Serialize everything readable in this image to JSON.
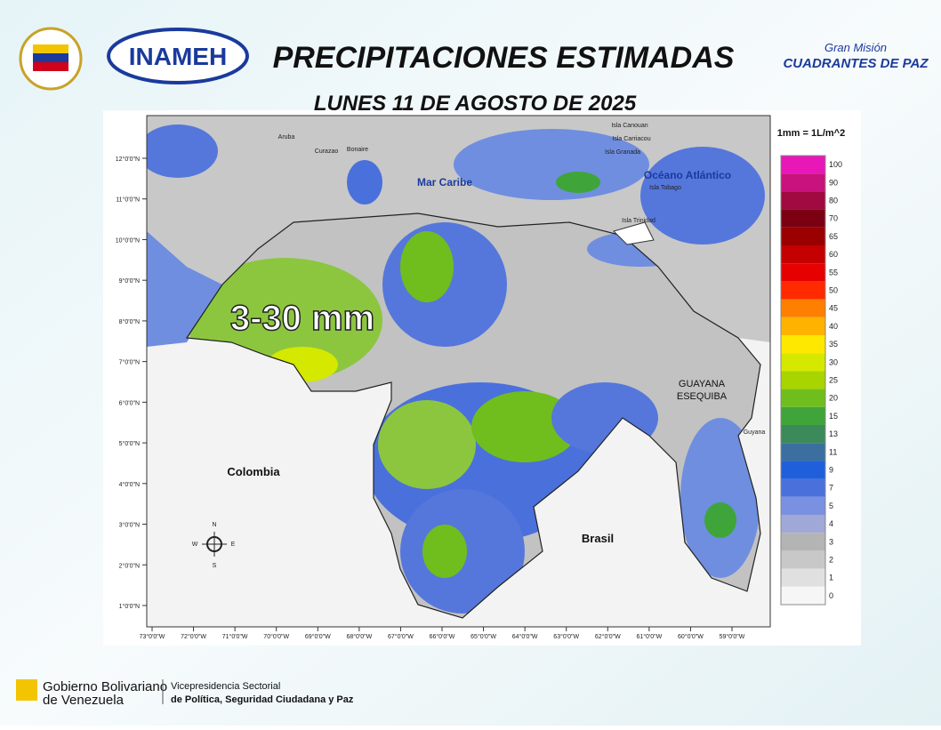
{
  "header": {
    "title": "PRECIPITACIONES ESTIMADAS",
    "subtitle": "LUNES 11 DE AGOSTO DE 2025",
    "logo_text": "INAMEH",
    "mision": "Gran Misión",
    "mision_name": "CUADRANTES DE PAZ"
  },
  "map": {
    "annotation": "3-30 mm",
    "labels": [
      "Mar Caribe",
      "Océano Atlántico",
      "Colombia",
      "Brasil",
      "GUAYANA",
      "ESEQUIBA",
      "Guyana",
      "Aruba",
      "Curazao",
      "Bonaire",
      "Isla Canouan",
      "Isla Carriacou",
      "Isla Granada",
      "Isla Tobago",
      "Isla Trinidad"
    ],
    "lat_ticks": [
      "12°0'0\"N",
      "11°0'0\"N",
      "10°0'0\"N",
      "9°0'0\"N",
      "8°0'0\"N",
      "7°0'0\"N",
      "6°0'0\"N",
      "5°0'0\"N",
      "4°0'0\"N",
      "3°0'0\"N",
      "2°0'0\"N",
      "1°0'0\"N"
    ],
    "lon_ticks": [
      "73°0'0\"W",
      "72°0'0\"W",
      "71°0'0\"W",
      "70°0'0\"W",
      "69°0'0\"W",
      "68°0'0\"W",
      "67°0'0\"W",
      "66°0'0\"W",
      "65°0'0\"W",
      "64°0'0\"W",
      "63°0'0\"W",
      "62°0'0\"W",
      "61°0'0\"W",
      "60°0'0\"W",
      "59°0'0\"W"
    ],
    "compass": [
      "N",
      "E",
      "S",
      "W"
    ]
  },
  "legend": {
    "title": "1mm = 1L/m^2",
    "items": [
      {
        "label": 100,
        "color": "#e817b8"
      },
      {
        "label": 90,
        "color": "#c8127c"
      },
      {
        "label": 80,
        "color": "#a00a40"
      },
      {
        "label": 70,
        "color": "#7a0012"
      },
      {
        "label": 65,
        "color": "#9a0000"
      },
      {
        "label": 60,
        "color": "#c40000"
      },
      {
        "label": 55,
        "color": "#e60000"
      },
      {
        "label": 50,
        "color": "#ff2a00"
      },
      {
        "label": 45,
        "color": "#ff7f00"
      },
      {
        "label": 40,
        "color": "#ffb300"
      },
      {
        "label": 35,
        "color": "#ffe800"
      },
      {
        "label": 30,
        "color": "#d4e800"
      },
      {
        "label": 25,
        "color": "#a8d400"
      },
      {
        "label": 20,
        "color": "#6fbe1e"
      },
      {
        "label": 15,
        "color": "#3fa53a"
      },
      {
        "label": 13,
        "color": "#3c8a5a"
      },
      {
        "label": 11,
        "color": "#3a6fa0"
      },
      {
        "label": 9,
        "color": "#1f5fdc"
      },
      {
        "label": 7,
        "color": "#4a70dc"
      },
      {
        "label": 5,
        "color": "#7a90e0"
      },
      {
        "label": 4,
        "color": "#a0a8d8"
      },
      {
        "label": 3,
        "color": "#b4b4b4"
      },
      {
        "label": 2,
        "color": "#c8c8c8"
      },
      {
        "label": 1,
        "color": "#e0e0e0"
      },
      {
        "label": 0,
        "color": "#f6f6f6"
      }
    ]
  },
  "footer": {
    "gov_line1": "Gobierno Bolivariano",
    "gov_line2": "de Venezuela",
    "vice_line1": "Vicepresidencia Sectorial",
    "vice_line2": "de Política, Seguridad Ciudadana y Paz"
  }
}
